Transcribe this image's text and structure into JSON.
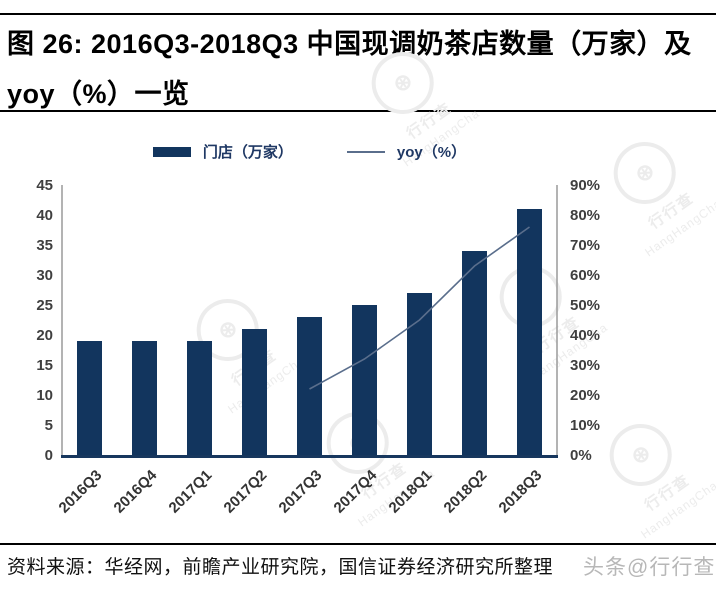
{
  "header": {
    "title_line1": "图 26:  2016Q3-2018Q3 中国现调奶茶店数量（万家）及",
    "title_line2": "yoy（%）一览"
  },
  "chart_data": {
    "type": "bar",
    "title": "2016Q3-2018Q3 中国现调奶茶店数量（万家）及 yoy（%）一览",
    "categories": [
      "2016Q3",
      "2016Q4",
      "2017Q1",
      "2017Q2",
      "2017Q3",
      "2017Q4",
      "2018Q1",
      "2018Q2",
      "2018Q3"
    ],
    "series": [
      {
        "name": "门店（万家）",
        "type": "bar",
        "axis": "left",
        "color": "#12355E",
        "values": [
          19,
          19,
          19,
          21,
          23,
          25,
          27,
          34,
          41
        ]
      },
      {
        "name": "yoy（%）",
        "type": "line",
        "axis": "right",
        "color": "#5A6E8C",
        "values": [
          null,
          null,
          null,
          null,
          22,
          32,
          45,
          63,
          76
        ]
      }
    ],
    "left_axis": {
      "min": 0,
      "max": 45,
      "step": 5,
      "labels": [
        "0",
        "5",
        "10",
        "15",
        "20",
        "25",
        "30",
        "35",
        "40",
        "45"
      ]
    },
    "right_axis": {
      "min": 0,
      "max": 90,
      "step": 10,
      "labels": [
        "0%",
        "10%",
        "20%",
        "30%",
        "40%",
        "50%",
        "60%",
        "70%",
        "80%",
        "90%"
      ]
    },
    "legend_position": "top",
    "grid": false
  },
  "footer": {
    "source": "资料来源：华经网，前瞻产业研究院，国信证券经济研究所整理",
    "overlay_watermark": "头条@行行查"
  },
  "watermark": {
    "cn": "行行查",
    "en": "HangHangCha"
  },
  "colors": {
    "bar": "#12355E",
    "line": "#5A6E8C",
    "legend_text": "#1F3864",
    "axis_line": "#9A9A9A",
    "baseline": "#17375E",
    "tick_text": "#3F3F3F",
    "rule": "#000000"
  }
}
